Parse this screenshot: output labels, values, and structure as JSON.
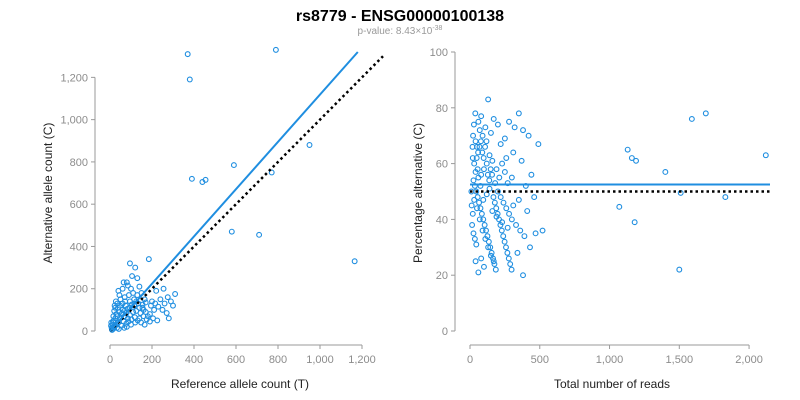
{
  "figure": {
    "title": "rs8779 - ENSG00000100138",
    "subtitle_prefix": "p-value: 8.43×10",
    "subtitle_exponent": "-38"
  },
  "colors": {
    "points": "#1f8ee0",
    "fit_line": "#1f8ee0",
    "reference_line": "#000000",
    "axis": "#9a9a9a",
    "tick_text": "#8c8c8c"
  },
  "chart_data": [
    {
      "type": "scatter",
      "xlabel": "Reference allele count (T)",
      "ylabel": "Alternative allele count (C)",
      "xlim": [
        0,
        1300
      ],
      "ylim": [
        0,
        1320
      ],
      "xticks": [
        0,
        200,
        400,
        600,
        800,
        1000,
        1200
      ],
      "yticks": [
        0,
        200,
        400,
        600,
        800,
        1000,
        1200
      ],
      "tick_labels_x": [
        "0",
        "200",
        "400",
        "600",
        "800",
        "1,000",
        "1,200"
      ],
      "tick_labels_y": [
        "0",
        "200",
        "400",
        "600",
        "800",
        "1,000",
        "1,200"
      ],
      "grid": false,
      "fit_line": {
        "style": "solid",
        "from": [
          0,
          0
        ],
        "to": [
          1180,
          1320
        ]
      },
      "reference_line": {
        "style": "dotted",
        "from": [
          0,
          0
        ],
        "to": [
          1300,
          1300
        ]
      },
      "points": [
        [
          370,
          1310
        ],
        [
          790,
          1330
        ],
        [
          380,
          1190
        ],
        [
          950,
          880
        ],
        [
          590,
          785
        ],
        [
          390,
          720
        ],
        [
          440,
          705
        ],
        [
          455,
          715
        ],
        [
          770,
          750
        ],
        [
          580,
          470
        ],
        [
          710,
          455
        ],
        [
          1165,
          330
        ],
        [
          310,
          175
        ],
        [
          300,
          120
        ],
        [
          250,
          100
        ],
        [
          180,
          70
        ],
        [
          160,
          100
        ],
        [
          165,
          150
        ],
        [
          95,
          320
        ],
        [
          120,
          300
        ],
        [
          185,
          340
        ],
        [
          220,
          190
        ],
        [
          240,
          150
        ],
        [
          200,
          140
        ],
        [
          130,
          250
        ],
        [
          105,
          260
        ],
        [
          80,
          230
        ],
        [
          60,
          200
        ],
        [
          40,
          190
        ],
        [
          140,
          210
        ],
        [
          110,
          180
        ],
        [
          90,
          170
        ],
        [
          70,
          160
        ],
        [
          50,
          150
        ],
        [
          35,
          130
        ],
        [
          25,
          110
        ],
        [
          20,
          95
        ],
        [
          30,
          80
        ],
        [
          45,
          90
        ],
        [
          60,
          100
        ],
        [
          75,
          120
        ],
        [
          95,
          140
        ],
        [
          115,
          120
        ],
        [
          135,
          130
        ],
        [
          155,
          110
        ],
        [
          170,
          90
        ],
        [
          190,
          80
        ],
        [
          205,
          60
        ],
        [
          225,
          50
        ],
        [
          140,
          60
        ],
        [
          120,
          40
        ],
        [
          100,
          30
        ],
        [
          80,
          20
        ],
        [
          65,
          45
        ],
        [
          50,
          60
        ],
        [
          40,
          40
        ],
        [
          30,
          30
        ],
        [
          20,
          20
        ],
        [
          15,
          10
        ],
        [
          10,
          5
        ],
        [
          12,
          30
        ],
        [
          18,
          50
        ],
        [
          8,
          15
        ],
        [
          25,
          60
        ],
        [
          35,
          70
        ],
        [
          55,
          80
        ],
        [
          70,
          70
        ],
        [
          85,
          60
        ],
        [
          95,
          75
        ],
        [
          110,
          90
        ],
        [
          125,
          95
        ],
        [
          145,
          85
        ],
        [
          160,
          70
        ],
        [
          175,
          55
        ],
        [
          190,
          45
        ],
        [
          210,
          100
        ],
        [
          230,
          115
        ],
        [
          260,
          130
        ],
        [
          270,
          85
        ],
        [
          280,
          60
        ],
        [
          130,
          170
        ],
        [
          150,
          180
        ],
        [
          100,
          200
        ],
        [
          85,
          215
        ],
        [
          65,
          230
        ],
        [
          45,
          170
        ],
        [
          28,
          140
        ],
        [
          22,
          120
        ],
        [
          16,
          70
        ],
        [
          6,
          40
        ],
        [
          5,
          25
        ],
        [
          9,
          10
        ],
        [
          14,
          45
        ],
        [
          24,
          25
        ],
        [
          33,
          15
        ],
        [
          42,
          10
        ],
        [
          55,
          25
        ],
        [
          68,
          15
        ],
        [
          78,
          35
        ],
        [
          88,
          45
        ],
        [
          102,
          55
        ],
        [
          118,
          65
        ],
        [
          132,
          50
        ],
        [
          148,
          40
        ],
        [
          165,
          30
        ],
        [
          195,
          120
        ],
        [
          215,
          130
        ],
        [
          255,
          200
        ],
        [
          275,
          160
        ],
        [
          290,
          140
        ],
        [
          115,
          150
        ],
        [
          125,
          140
        ],
        [
          140,
          110
        ],
        [
          155,
          125
        ],
        [
          170,
          135
        ],
        [
          60,
          130
        ],
        [
          72,
          140
        ],
        [
          83,
          105
        ],
        [
          93,
          110
        ],
        [
          103,
          125
        ],
        [
          38,
          110
        ],
        [
          48,
          120
        ],
        [
          58,
          85
        ],
        [
          68,
          95
        ],
        [
          78,
          85
        ]
      ]
    },
    {
      "type": "scatter",
      "xlabel": "Total number of reads",
      "ylabel": "Percentage alternative (C)",
      "xlim": [
        0,
        2150
      ],
      "ylim": [
        0,
        100
      ],
      "xticks": [
        0,
        500,
        1000,
        1500,
        2000
      ],
      "yticks": [
        0,
        20,
        40,
        60,
        80,
        100
      ],
      "tick_labels_x": [
        "0",
        "500",
        "1,000",
        "1,500",
        "2,000"
      ],
      "tick_labels_y": [
        "0",
        "20",
        "40",
        "60",
        "80",
        "100"
      ],
      "grid": false,
      "fit_line": {
        "style": "solid",
        "y": 52.5
      },
      "reference_line": {
        "style": "dotted",
        "y": 50
      },
      "points": [
        [
          1690,
          78
        ],
        [
          1590,
          76
        ],
        [
          1130,
          65
        ],
        [
          1160,
          62
        ],
        [
          1190,
          61
        ],
        [
          1400,
          57
        ],
        [
          2120,
          63
        ],
        [
          1070,
          44.5
        ],
        [
          1180,
          39
        ],
        [
          1510,
          49.5
        ],
        [
          1500,
          22
        ],
        [
          1830,
          48
        ],
        [
          130,
          83
        ],
        [
          80,
          77
        ],
        [
          60,
          75
        ],
        [
          70,
          72
        ],
        [
          40,
          68
        ],
        [
          50,
          66
        ],
        [
          90,
          70
        ],
        [
          110,
          73
        ],
        [
          150,
          71
        ],
        [
          170,
          76
        ],
        [
          200,
          74
        ],
        [
          220,
          67
        ],
        [
          250,
          69
        ],
        [
          280,
          75
        ],
        [
          320,
          73
        ],
        [
          350,
          78
        ],
        [
          380,
          72
        ],
        [
          420,
          70
        ],
        [
          490,
          67
        ],
        [
          310,
          64
        ],
        [
          260,
          62
        ],
        [
          230,
          60
        ],
        [
          190,
          58
        ],
        [
          160,
          61
        ],
        [
          140,
          63
        ],
        [
          120,
          60
        ],
        [
          100,
          58
        ],
        [
          80,
          56
        ],
        [
          60,
          55
        ],
        [
          40,
          57
        ],
        [
          30,
          60
        ],
        [
          20,
          62
        ],
        [
          25,
          54
        ],
        [
          35,
          52
        ],
        [
          45,
          50
        ],
        [
          55,
          48
        ],
        [
          65,
          46
        ],
        [
          75,
          44
        ],
        [
          85,
          42
        ],
        [
          95,
          40
        ],
        [
          105,
          38
        ],
        [
          115,
          36
        ],
        [
          125,
          34
        ],
        [
          135,
          32
        ],
        [
          145,
          30
        ],
        [
          155,
          28
        ],
        [
          165,
          26
        ],
        [
          175,
          24
        ],
        [
          185,
          22
        ],
        [
          50,
          44
        ],
        [
          70,
          40
        ],
        [
          90,
          36
        ],
        [
          110,
          33
        ],
        [
          130,
          30
        ],
        [
          150,
          27
        ],
        [
          170,
          25
        ],
        [
          40,
          25
        ],
        [
          60,
          21
        ],
        [
          80,
          26
        ],
        [
          100,
          23
        ],
        [
          200,
          50
        ],
        [
          220,
          48
        ],
        [
          240,
          46
        ],
        [
          260,
          44
        ],
        [
          280,
          42
        ],
        [
          300,
          40
        ],
        [
          330,
          38
        ],
        [
          360,
          36
        ],
        [
          390,
          34
        ],
        [
          430,
          30
        ],
        [
          470,
          35
        ],
        [
          520,
          36
        ],
        [
          380,
          20
        ],
        [
          340,
          28
        ],
        [
          300,
          55
        ],
        [
          270,
          53
        ],
        [
          250,
          57
        ],
        [
          210,
          55
        ],
        [
          180,
          53
        ],
        [
          140,
          51
        ],
        [
          120,
          49
        ],
        [
          95,
          47
        ],
        [
          75,
          52
        ],
        [
          55,
          58
        ],
        [
          30,
          47
        ],
        [
          20,
          42
        ],
        [
          15,
          38
        ],
        [
          25,
          35
        ],
        [
          35,
          33
        ],
        [
          45,
          31
        ],
        [
          10,
          50
        ],
        [
          12,
          45
        ],
        [
          18,
          66
        ],
        [
          22,
          70
        ],
        [
          28,
          74
        ],
        [
          38,
          78
        ],
        [
          48,
          62
        ],
        [
          58,
          64
        ],
        [
          68,
          66
        ],
        [
          78,
          68
        ],
        [
          88,
          64
        ],
        [
          98,
          62
        ],
        [
          108,
          66
        ],
        [
          118,
          68
        ],
        [
          128,
          56
        ],
        [
          138,
          54
        ],
        [
          148,
          58
        ],
        [
          158,
          56
        ],
        [
          168,
          48
        ],
        [
          178,
          46
        ],
        [
          188,
          44
        ],
        [
          198,
          42
        ],
        [
          208,
          40
        ],
        [
          218,
          38
        ],
        [
          228,
          36
        ],
        [
          238,
          34
        ],
        [
          248,
          32
        ],
        [
          258,
          30
        ],
        [
          268,
          28
        ],
        [
          278,
          26
        ],
        [
          288,
          24
        ],
        [
          298,
          22
        ],
        [
          160,
          43
        ],
        [
          190,
          41
        ],
        [
          230,
          39
        ],
        [
          270,
          37
        ],
        [
          310,
          45
        ],
        [
          350,
          47
        ],
        [
          400,
          52
        ],
        [
          440,
          56
        ],
        [
          460,
          48
        ],
        [
          410,
          43
        ],
        [
          370,
          61
        ]
      ]
    }
  ]
}
